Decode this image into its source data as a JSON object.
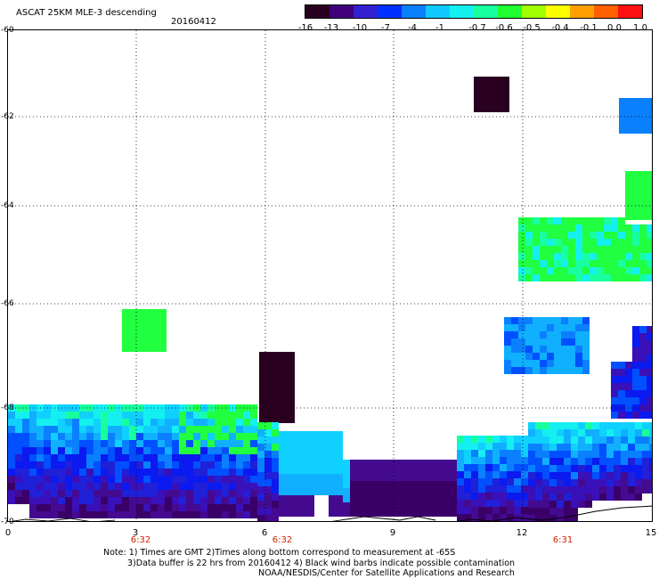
{
  "header": {
    "title": "ASCAT 25KM MLE-3 descending",
    "date": "20160412"
  },
  "colorbar": {
    "colors": [
      "#2a0020",
      "#3f007a",
      "#3320d0",
      "#0030ff",
      "#0a80ff",
      "#10c8ff",
      "#14f0f0",
      "#18ffa0",
      "#20ff30",
      "#a0ff00",
      "#ffff00",
      "#ffa000",
      "#ff6000",
      "#ff1010"
    ],
    "labels": [
      "-16",
      "-13",
      "-10",
      "-7",
      "-4",
      "-1",
      "-0.7",
      "-0.6",
      "-0.5",
      "-0.4",
      "-0.1",
      "0.0",
      "1.0"
    ]
  },
  "axes": {
    "x_ticks": [
      "0",
      "3",
      "6",
      "9",
      "12",
      "15"
    ],
    "y_ticks": [
      "-60",
      "-62",
      "-64",
      "-66",
      "-68",
      "-70"
    ],
    "time_labels": [
      "6:32",
      "6:32",
      "6:31"
    ]
  },
  "notes": {
    "line1": "Note: 1) Times are GMT 2)Times along bottom correspond to measurement at -65S",
    "line2": "3)Data buffer is 22 hrs from 20160412 4) Black wind barbs indicate possible contamination",
    "line3": "NOAA/NESDIS/Center for Satellite Applications and Research"
  }
}
